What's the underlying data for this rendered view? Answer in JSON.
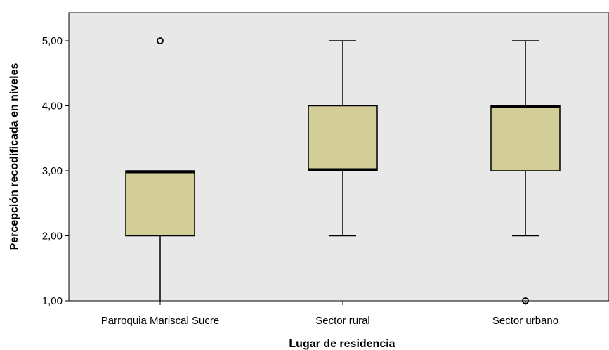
{
  "chart_data": {
    "type": "boxplot",
    "title": "",
    "xlabel": "Lugar de residencia",
    "ylabel": "Percepción recodificada en niveles",
    "ylim": [
      1,
      5.42
    ],
    "y_ticks": [
      1,
      2,
      3,
      4,
      5
    ],
    "y_tick_labels": [
      "1,00",
      "2,00",
      "3,00",
      "4,00",
      "5,00"
    ],
    "grid": false,
    "categories": [
      "Parroquia Mariscal Sucre",
      "Sector rural",
      "Sector urbano"
    ],
    "boxes": [
      {
        "category": "Parroquia Mariscal Sucre",
        "whisker_low": 1,
        "q1": 2,
        "median": 3,
        "q3": 3,
        "whisker_high": 3,
        "outliers": [
          5
        ]
      },
      {
        "category": "Sector rural",
        "whisker_low": 2,
        "q1": 3,
        "median": 3,
        "q3": 4,
        "whisker_high": 5,
        "outliers": []
      },
      {
        "category": "Sector urbano",
        "whisker_low": 2,
        "q1": 3,
        "median": 4,
        "q3": 4,
        "whisker_high": 5,
        "outliers": [
          1
        ]
      }
    ],
    "colors": {
      "plot_background": "#e8e8e8",
      "box_fill": "#d3ce97",
      "line": "#000000",
      "page_background": "#ffffff"
    }
  }
}
